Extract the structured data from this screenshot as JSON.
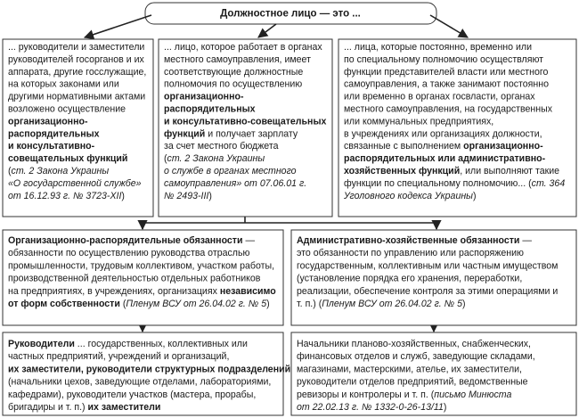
{
  "title": "Должностное лицо — это ...",
  "boxes": [
    {
      "lines": [
        [
          {
            "text": "... руководители и заместители"
          }
        ],
        [
          {
            "text": "руководителей госорганов и их"
          }
        ],
        [
          {
            "text": "аппарата, другие госслужащие,"
          }
        ],
        [
          {
            "text": "на которых законами или"
          }
        ],
        [
          {
            "text": "другими нормативными актами"
          }
        ],
        [
          {
            "text": "возложено осуществление"
          }
        ],
        [
          {
            "text": "организационно-",
            "bold": true
          }
        ],
        [
          {
            "text": "распорядительных",
            "bold": true
          }
        ],
        [
          {
            "text": "и консультативно-",
            "bold": true
          }
        ],
        [
          {
            "text": "совещательных функций",
            "bold": true
          }
        ],
        [
          {
            "text": "("
          },
          {
            "text": "ст. 2 Закона Украины",
            "italic": true
          }
        ],
        [
          {
            "text": "«О государственной службе»",
            "italic": true
          }
        ],
        [
          {
            "text": "от 16.12.93 г. № 3723-XII",
            "italic": true
          },
          {
            "text": ")"
          }
        ]
      ]
    },
    {
      "lines": [
        [
          {
            "text": "... лицо, которое работает в органах"
          }
        ],
        [
          {
            "text": "местного самоуправления, имеет"
          }
        ],
        [
          {
            "text": "соответствующие должностные"
          }
        ],
        [
          {
            "text": "полномочия по осуществлению"
          }
        ],
        [
          {
            "text": "организационно-",
            "bold": true
          }
        ],
        [
          {
            "text": "распорядительных",
            "bold": true
          }
        ],
        [
          {
            "text": "и консультативно-совещательных",
            "bold": true
          }
        ],
        [
          {
            "text": "функций",
            "bold": true
          },
          {
            "text": " и получает зарплату"
          }
        ],
        [
          {
            "text": "за счет местного бюджета"
          }
        ],
        [
          {
            "text": "("
          },
          {
            "text": "ст. 2 Закона Украины",
            "italic": true
          }
        ],
        [
          {
            "text": "о службе в органах местного",
            "italic": true
          }
        ],
        [
          {
            "text": "самоуправления» от 07.06.01 г.",
            "italic": true
          }
        ],
        [
          {
            "text": "№ 2493-III",
            "italic": true
          },
          {
            "text": ")"
          }
        ]
      ]
    },
    {
      "lines": [
        [
          {
            "text": "... лица, которые постоянно, временно или"
          }
        ],
        [
          {
            "text": "по специальному полномочию осуществляют"
          }
        ],
        [
          {
            "text": "функции представителей власти или местного"
          }
        ],
        [
          {
            "text": "самоуправления, а также занимают постоянно"
          }
        ],
        [
          {
            "text": "или временно в органах госвласти, органах"
          }
        ],
        [
          {
            "text": "местного самоуправления, на государственных"
          }
        ],
        [
          {
            "text": "или коммунальных предприятиях,"
          }
        ],
        [
          {
            "text": "в учреждениях или организациях должности,"
          }
        ],
        [
          {
            "text": "связанные с выполнением "
          },
          {
            "text": "организационно-",
            "bold": true
          }
        ],
        [
          {
            "text": "распорядительных или административно-",
            "bold": true
          }
        ],
        [
          {
            "text": "хозяйственных функций",
            "bold": true
          },
          {
            "text": ", или выполняют такие"
          }
        ],
        [
          {
            "text": "функции по специальному полномочию... ("
          },
          {
            "text": "ст. 364",
            "italic": true
          }
        ],
        [
          {
            "text": "Уголовного кодекса Украины",
            "italic": true
          },
          {
            "text": ")"
          }
        ]
      ]
    },
    {
      "lines": [
        [
          {
            "text": "Организационно-распорядительные обязанности",
            "bold": true
          },
          {
            "text": " —"
          }
        ],
        [
          {
            "text": "обязанности по осуществлению руководства отраслью"
          }
        ],
        [
          {
            "text": "промышленности, трудовым коллективом, участком работы,"
          }
        ],
        [
          {
            "text": "производственной деятельностью отдельных работников"
          }
        ],
        [
          {
            "text": "на предприятиях, в учреждениях, организациях "
          },
          {
            "text": "независимо",
            "bold": true
          }
        ],
        [
          {
            "text": "от форм собственности",
            "bold": true
          },
          {
            "text": " ("
          },
          {
            "text": "Пленум ВСУ от 26.04.02 г. № 5",
            "italic": true
          },
          {
            "text": ")"
          }
        ]
      ]
    },
    {
      "lines": [
        [
          {
            "text": "Административно-хозяйственные обязанности",
            "bold": true
          },
          {
            "text": " —"
          }
        ],
        [
          {
            "text": "это обязанности по управлению или распоряжению"
          }
        ],
        [
          {
            "text": "государственным, коллективным или частным имуществом"
          }
        ],
        [
          {
            "text": "(установление порядка его хранения, переработки,"
          }
        ],
        [
          {
            "text": "реализации, обеспечение контроля за этими операциями и"
          }
        ],
        [
          {
            "text": "т. п.) ("
          },
          {
            "text": "Пленум ВСУ от 26.04.02 г. № 5",
            "italic": true
          },
          {
            "text": ")"
          }
        ]
      ]
    },
    {
      "lines": [
        [
          {
            "text": "Руководители",
            "bold": true
          },
          {
            "text": " ... государственных, коллективных или"
          }
        ],
        [
          {
            "text": "частных предприятий, учреждений и организаций,"
          }
        ],
        [
          {
            "text": "их заместители, руководители структурных подразделений",
            "bold": true
          }
        ],
        [
          {
            "text": "(начальники цехов, заведующие отделами, лабораториями,"
          }
        ],
        [
          {
            "text": "кафедрами), руководители участков (мастера, прорабы,"
          }
        ],
        [
          {
            "text": "бригадиры и т. п.) "
          },
          {
            "text": "их заместители",
            "bold": true
          }
        ]
      ]
    },
    {
      "lines": [
        [
          {
            "text": "Начальники планово-хозяйственных, снабженческих,"
          }
        ],
        [
          {
            "text": "финансовых отделов и служб, заведующие складами,"
          }
        ],
        [
          {
            "text": "магазинами, мастерскими, ателье, их заместители,"
          }
        ],
        [
          {
            "text": "руководители отделов предприятий, ведомственные"
          }
        ],
        [
          {
            "text": "ревизоры и контролеры и т. п. ("
          },
          {
            "text": "письмо Минюста",
            "italic": true
          }
        ],
        [
          {
            "text": "от 22.02.13 г. № 1332-0-26-13/11",
            "italic": true
          },
          {
            "text": ")"
          }
        ]
      ]
    }
  ]
}
